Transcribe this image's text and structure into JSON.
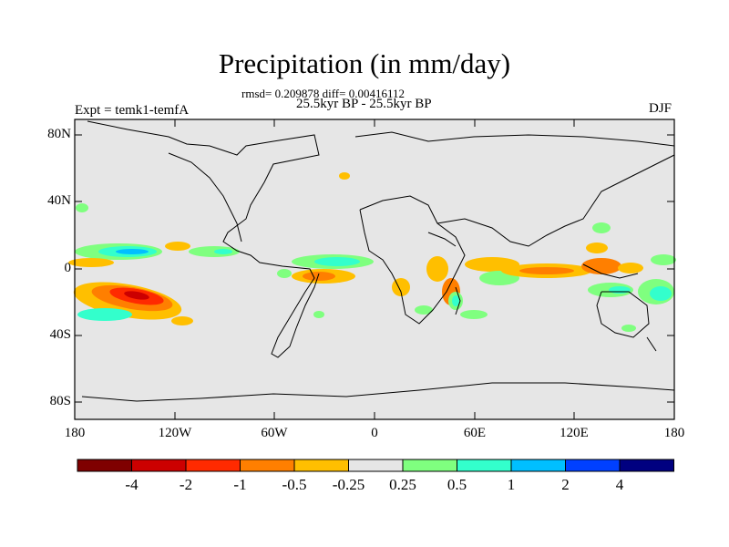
{
  "title": "Precipitation (in mm/day)",
  "stats": "rmsd= 0.209878 diff= 0.00416112",
  "period": "25.5kyr BP - 25.5kyr BP",
  "experiment": "Expt = temk1-temfA",
  "season": "DJF",
  "lat_ticks": [
    "80N",
    "40N",
    "0",
    "40S",
    "80S"
  ],
  "lon_ticks": [
    "180",
    "120W",
    "60W",
    "0",
    "60E",
    "120E",
    "180"
  ],
  "colorbar": {
    "labels": [
      "-4",
      "-2",
      "-1",
      "-0.5",
      "-0.25",
      "0.25",
      "0.5",
      "1",
      "2",
      "4"
    ],
    "colors": [
      "#7f0000",
      "#cc0000",
      "#ff2a00",
      "#ff7f00",
      "#ffbf00",
      "#e6e6e6",
      "#7fff7f",
      "#33ffcc",
      "#00bfff",
      "#0040ff",
      "#000080"
    ]
  }
}
